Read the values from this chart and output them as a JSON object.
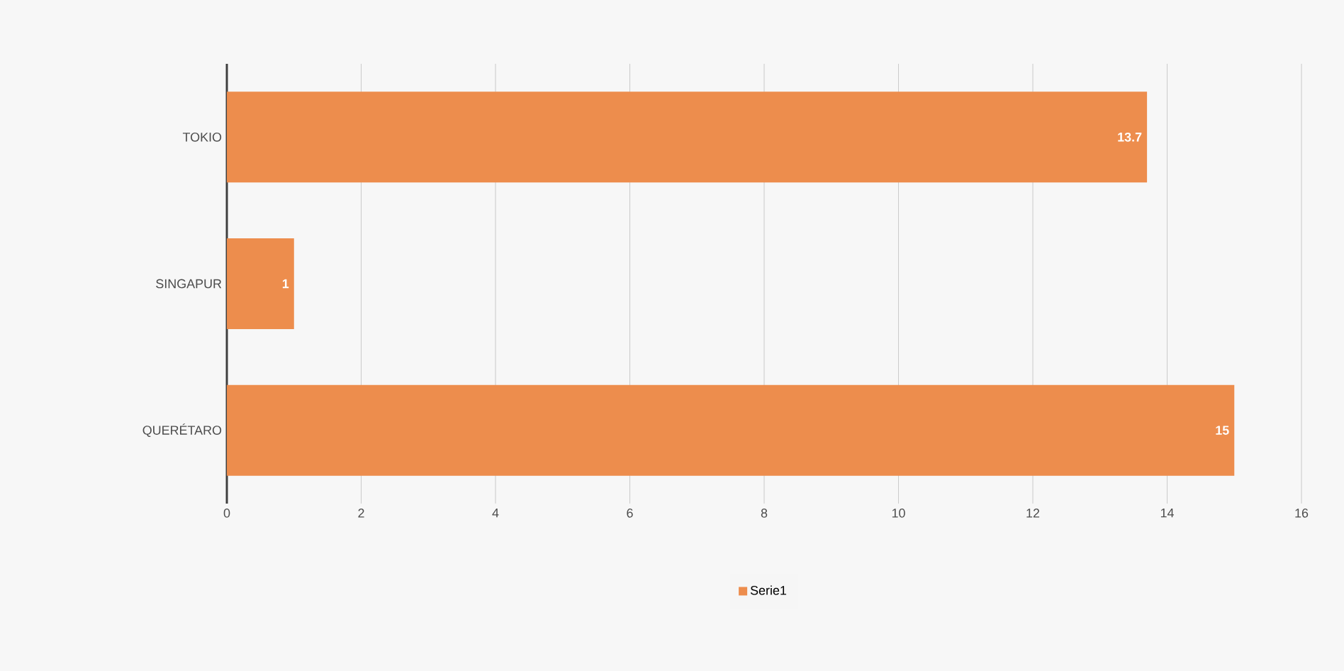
{
  "chart_data": {
    "type": "bar",
    "orientation": "horizontal",
    "categories": [
      "TOKIO",
      "SINGAPUR",
      "QUERÉTARO"
    ],
    "series": [
      {
        "name": "Serie1",
        "color": "#ed8d4d",
        "values": [
          13.7,
          1,
          15
        ]
      }
    ],
    "xlim": [
      0,
      16
    ],
    "xticks": [
      0,
      2,
      4,
      6,
      8,
      10,
      12,
      14,
      16
    ],
    "grid": "x",
    "legend": "bottom",
    "data_labels": true
  }
}
